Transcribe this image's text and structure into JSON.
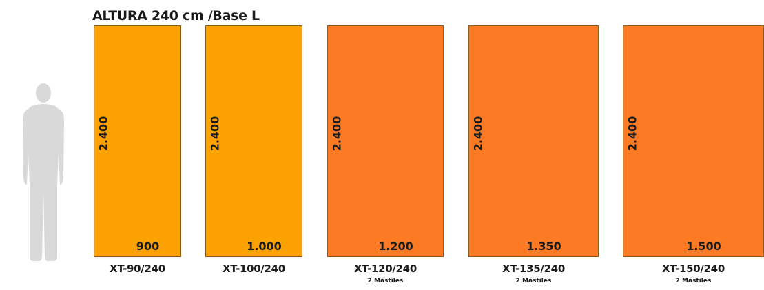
{
  "title": "ALTURA 240 cm /Base L",
  "icons": {
    "person": "person-silhouette-icon"
  },
  "colors": {
    "yellow_panel": "#fca102",
    "orange_panel": "#fb7a23",
    "silhouette": "#d9d9d9"
  },
  "panels": [
    {
      "model": "XT-90/240",
      "height": "2.400",
      "width": "900",
      "masts": "",
      "color": "yellow"
    },
    {
      "model": "XT-100/240",
      "height": "2.400",
      "width": "1.000",
      "masts": "",
      "color": "yellow"
    },
    {
      "model": "XT-120/240",
      "height": "2.400",
      "width": "1.200",
      "masts": "2 Mástiles",
      "color": "orange"
    },
    {
      "model": "XT-135/240",
      "height": "2.400",
      "width": "1.350",
      "masts": "2 Mástiles",
      "color": "orange"
    },
    {
      "model": "XT-150/240",
      "height": "2.400",
      "width": "1.500",
      "masts": "2 Mástiles",
      "color": "orange"
    }
  ]
}
